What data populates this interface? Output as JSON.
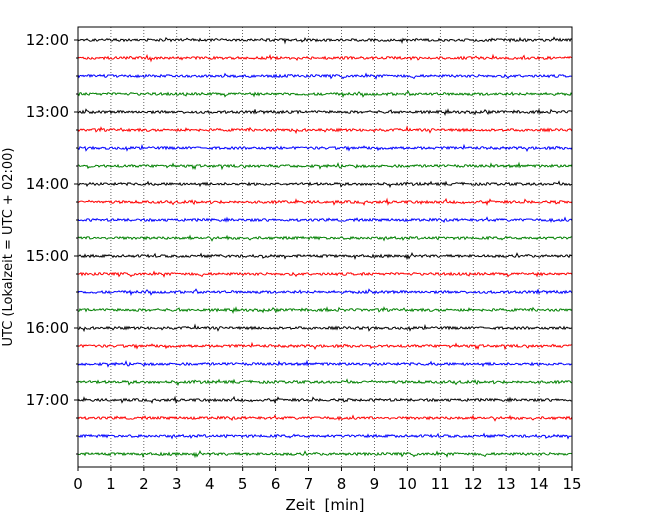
{
  "chart_data": {
    "type": "line",
    "title": "",
    "xlabel": "Zeit  [min]",
    "ylabel": "UTC (Lokalzeit = UTC + 02:00)",
    "xlim": [
      0,
      15
    ],
    "x_ticks": [
      0,
      1,
      2,
      3,
      4,
      5,
      6,
      7,
      8,
      9,
      10,
      11,
      12,
      13,
      14,
      15
    ],
    "y_tick_labels": [
      "12:00",
      "13:00",
      "14:00",
      "15:00",
      "16:00",
      "17:00"
    ],
    "grid": "vertical dotted lines at each minute",
    "legend": "none",
    "traces_per_hour": 4,
    "trace_color_cycle": [
      "#000000",
      "#ff0000",
      "#0000ff",
      "#008000"
    ],
    "traces": [
      {
        "start": "12:00",
        "color": "#000000"
      },
      {
        "start": "12:15",
        "color": "#ff0000"
      },
      {
        "start": "12:30",
        "color": "#0000ff"
      },
      {
        "start": "12:45",
        "color": "#008000"
      },
      {
        "start": "13:00",
        "color": "#000000"
      },
      {
        "start": "13:15",
        "color": "#ff0000"
      },
      {
        "start": "13:30",
        "color": "#0000ff"
      },
      {
        "start": "13:45",
        "color": "#008000"
      },
      {
        "start": "14:00",
        "color": "#000000"
      },
      {
        "start": "14:15",
        "color": "#ff0000"
      },
      {
        "start": "14:30",
        "color": "#0000ff"
      },
      {
        "start": "14:45",
        "color": "#008000"
      },
      {
        "start": "15:00",
        "color": "#000000"
      },
      {
        "start": "15:15",
        "color": "#ff0000"
      },
      {
        "start": "15:30",
        "color": "#0000ff"
      },
      {
        "start": "15:45",
        "color": "#008000"
      },
      {
        "start": "16:00",
        "color": "#000000"
      },
      {
        "start": "16:15",
        "color": "#ff0000"
      },
      {
        "start": "16:30",
        "color": "#0000ff"
      },
      {
        "start": "16:45",
        "color": "#008000"
      },
      {
        "start": "17:00",
        "color": "#000000"
      },
      {
        "start": "17:15",
        "color": "#ff0000"
      },
      {
        "start": "17:30",
        "color": "#0000ff"
      },
      {
        "start": "17:45",
        "color": "#008000"
      }
    ]
  }
}
